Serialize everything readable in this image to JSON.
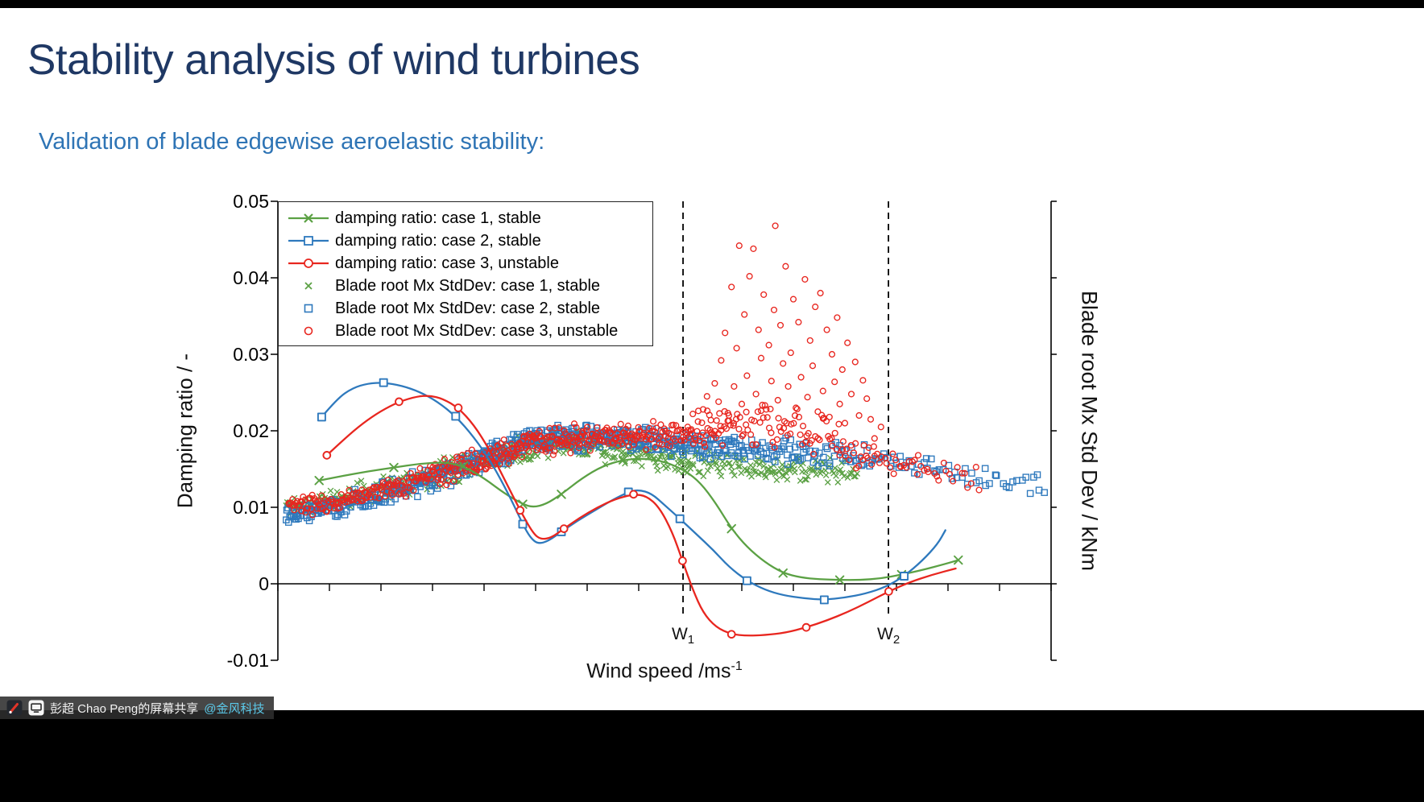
{
  "slide": {
    "title": "Stability analysis of wind turbines",
    "subtitle": "Validation of blade edgewise aeroelastic stability:"
  },
  "colors": {
    "title": "#1F3864",
    "subtitle": "#2E74B5",
    "case1_green": "#5BA144",
    "case2_blue": "#2E79BD",
    "case3_red": "#E8261F",
    "axis": "#000000",
    "share_org_link": "#5BC8E8"
  },
  "share_bar": {
    "presenter": "彭超 Chao Peng的屏幕共享",
    "org": "@金风科技",
    "icons": [
      "pen-icon",
      "screen-share-icon"
    ]
  },
  "chart_data": {
    "type": "line+scatter",
    "title": "",
    "xlabel": {
      "base": "Wind speed /ms",
      "sup": "-1"
    },
    "ylabel_left": "Damping ratio / -",
    "ylabel_right": "Blade root Mx Std Dev / kNm",
    "x_range": [
      0,
      30
    ],
    "x_tick_step": 2,
    "x_tick_labels_shown": false,
    "y_range": [
      -0.01,
      0.05
    ],
    "y_ticks": [
      0.05,
      0.04,
      0.03,
      0.02,
      0.01,
      0,
      -0.01
    ],
    "y_tick_labels": [
      "0.05",
      "0.04",
      "0.03",
      "0.02",
      "0.01",
      "0",
      "-0.01"
    ],
    "grid": false,
    "legend_position": "top-left",
    "vlines": [
      {
        "x": 15.72,
        "label": "W",
        "sub": "1"
      },
      {
        "x": 23.69,
        "label": "W",
        "sub": "2"
      }
    ],
    "legend": [
      {
        "label": "damping ratio: case 1, stable",
        "color": "#5BA144",
        "marker": "x",
        "line": true
      },
      {
        "label": "damping ratio: case 2, stable",
        "color": "#2E79BD",
        "marker": "square",
        "line": true
      },
      {
        "label": "damping ratio: case 3, unstable",
        "color": "#E8261F",
        "marker": "circle",
        "line": true
      },
      {
        "label": "Blade root Mx StdDev: case 1, stable",
        "color": "#5BA144",
        "marker": "x",
        "line": false
      },
      {
        "label": "Blade root Mx StdDev: case 2, stable",
        "color": "#2E79BD",
        "marker": "square",
        "line": false
      },
      {
        "label": "Blade root Mx StdDev: case 3, unstable",
        "color": "#E8261F",
        "marker": "circle",
        "line": false
      }
    ],
    "lines": [
      {
        "name": "damping ratio: case 1, stable",
        "color": "#5BA144",
        "marker": "x",
        "marker_every": 3,
        "points": [
          [
            1.6,
            0.0135
          ],
          [
            2.5,
            0.0141
          ],
          [
            3.5,
            0.0147
          ],
          [
            4.5,
            0.0152
          ],
          [
            5.5,
            0.0157
          ],
          [
            6.5,
            0.0159
          ],
          [
            7.2,
            0.0154
          ],
          [
            8.0,
            0.0138
          ],
          [
            8.8,
            0.0118
          ],
          [
            9.5,
            0.0104
          ],
          [
            9.9,
            0.01
          ],
          [
            10.4,
            0.0104
          ],
          [
            11.0,
            0.0117
          ],
          [
            11.8,
            0.0138
          ],
          [
            12.6,
            0.0154
          ],
          [
            13.4,
            0.0162
          ],
          [
            14.2,
            0.0164
          ],
          [
            15.0,
            0.016
          ],
          [
            15.8,
            0.0148
          ],
          [
            16.4,
            0.0132
          ],
          [
            17.0,
            0.0105
          ],
          [
            17.6,
            0.0072
          ],
          [
            18.2,
            0.0048
          ],
          [
            18.9,
            0.0028
          ],
          [
            19.6,
            0.0014
          ],
          [
            20.3,
            0.0008
          ],
          [
            21.0,
            0.0006
          ],
          [
            21.8,
            0.0005
          ],
          [
            22.6,
            0.0005
          ],
          [
            23.4,
            0.0007
          ],
          [
            24.2,
            0.0012
          ],
          [
            25.0,
            0.0018
          ],
          [
            25.9,
            0.0026
          ],
          [
            26.4,
            0.0031
          ]
        ]
      },
      {
        "name": "damping ratio: case 2, stable",
        "color": "#2E79BD",
        "marker": "square",
        "marker_every": 4,
        "points": [
          [
            1.7,
            0.0218
          ],
          [
            2.3,
            0.0242
          ],
          [
            2.9,
            0.0256
          ],
          [
            3.5,
            0.0262
          ],
          [
            4.1,
            0.0263
          ],
          [
            4.8,
            0.0259
          ],
          [
            5.5,
            0.0251
          ],
          [
            6.2,
            0.0238
          ],
          [
            6.9,
            0.0219
          ],
          [
            7.6,
            0.0192
          ],
          [
            8.3,
            0.0158
          ],
          [
            9.0,
            0.0114
          ],
          [
            9.5,
            0.0078
          ],
          [
            9.8,
            0.006
          ],
          [
            10.1,
            0.0052
          ],
          [
            10.5,
            0.0056
          ],
          [
            11.0,
            0.0068
          ],
          [
            11.6,
            0.0082
          ],
          [
            12.3,
            0.0096
          ],
          [
            13.0,
            0.011
          ],
          [
            13.6,
            0.012
          ],
          [
            14.0,
            0.0123
          ],
          [
            14.5,
            0.0118
          ],
          [
            15.0,
            0.0103
          ],
          [
            15.6,
            0.0085
          ],
          [
            16.2,
            0.0066
          ],
          [
            16.9,
            0.0044
          ],
          [
            17.5,
            0.0022
          ],
          [
            18.2,
            0.0004
          ],
          [
            18.9,
            -0.0008
          ],
          [
            19.6,
            -0.0015
          ],
          [
            20.4,
            -0.0019
          ],
          [
            21.2,
            -0.0021
          ],
          [
            22.0,
            -0.0018
          ],
          [
            22.8,
            -0.0013
          ],
          [
            23.6,
            -0.0004
          ],
          [
            24.3,
            0.001
          ],
          [
            25.0,
            0.003
          ],
          [
            25.6,
            0.0052
          ],
          [
            25.9,
            0.007
          ]
        ]
      },
      {
        "name": "damping ratio: case 3, unstable",
        "color": "#E8261F",
        "marker": "circle",
        "marker_every": 4,
        "points": [
          [
            1.9,
            0.0168
          ],
          [
            2.6,
            0.019
          ],
          [
            3.3,
            0.021
          ],
          [
            4.0,
            0.0226
          ],
          [
            4.7,
            0.0238
          ],
          [
            5.4,
            0.0245
          ],
          [
            5.9,
            0.0246
          ],
          [
            6.4,
            0.0242
          ],
          [
            7.0,
            0.023
          ],
          [
            7.6,
            0.0208
          ],
          [
            8.2,
            0.0176
          ],
          [
            8.8,
            0.0136
          ],
          [
            9.4,
            0.0096
          ],
          [
            9.9,
            0.0066
          ],
          [
            10.2,
            0.0058
          ],
          [
            10.6,
            0.006
          ],
          [
            11.1,
            0.0072
          ],
          [
            11.7,
            0.0086
          ],
          [
            12.4,
            0.01
          ],
          [
            13.1,
            0.0111
          ],
          [
            13.8,
            0.0117
          ],
          [
            14.3,
            0.0115
          ],
          [
            14.8,
            0.01
          ],
          [
            15.3,
            0.0068
          ],
          [
            15.7,
            0.003
          ],
          [
            16.1,
            -0.0008
          ],
          [
            16.5,
            -0.0038
          ],
          [
            17.0,
            -0.0057
          ],
          [
            17.6,
            -0.0066
          ],
          [
            18.2,
            -0.0068
          ],
          [
            18.9,
            -0.0067
          ],
          [
            19.7,
            -0.0064
          ],
          [
            20.5,
            -0.0057
          ],
          [
            21.3,
            -0.0048
          ],
          [
            22.1,
            -0.0037
          ],
          [
            22.9,
            -0.0024
          ],
          [
            23.7,
            -0.001
          ],
          [
            24.5,
            0.0002
          ],
          [
            25.4,
            0.0012
          ],
          [
            26.3,
            0.002
          ]
        ]
      }
    ],
    "scatter": [
      {
        "name": "Blade root Mx StdDev: case 1, stable",
        "color": "#5BA144",
        "marker": "x",
        "seed": 11,
        "bands": [
          [
            0.3,
            2.0,
            42,
            0.01,
            0.0108,
            0.001
          ],
          [
            2.0,
            4.0,
            51,
            0.0108,
            0.0125,
            0.0011
          ],
          [
            4.0,
            6.0,
            54,
            0.0125,
            0.0142,
            0.0012
          ],
          [
            6.0,
            8.0,
            60,
            0.0142,
            0.0163,
            0.0013
          ],
          [
            8.0,
            10.0,
            66,
            0.0163,
            0.018,
            0.0013
          ],
          [
            10.0,
            12.0,
            66,
            0.018,
            0.0183,
            0.0013
          ],
          [
            12.0,
            14.0,
            60,
            0.018,
            0.017,
            0.0013
          ],
          [
            14.0,
            16.0,
            54,
            0.0168,
            0.016,
            0.0013
          ],
          [
            16.0,
            18.5,
            51,
            0.0158,
            0.0152,
            0.0013
          ],
          [
            18.5,
            20.5,
            45,
            0.0152,
            0.0148,
            0.0012
          ],
          [
            20.5,
            22.5,
            39,
            0.015,
            0.0147,
            0.0012
          ]
        ],
        "points": [
          [
            1.7,
            0.0218
          ]
        ]
      },
      {
        "name": "Blade root Mx StdDev: case 2, stable",
        "color": "#2E79BD",
        "marker": "square",
        "seed": 22,
        "bands": [
          [
            0.3,
            2.0,
            45,
            0.0092,
            0.01,
            0.001
          ],
          [
            2.0,
            4.0,
            51,
            0.01,
            0.0116,
            0.0011
          ],
          [
            4.0,
            6.0,
            54,
            0.0116,
            0.0138,
            0.0012
          ],
          [
            6.0,
            8.0,
            60,
            0.0138,
            0.0165,
            0.0013
          ],
          [
            8.0,
            10.0,
            69,
            0.0165,
            0.0188,
            0.0013
          ],
          [
            10.0,
            12.0,
            69,
            0.0188,
            0.0193,
            0.0012
          ],
          [
            12.0,
            14.0,
            63,
            0.0192,
            0.0188,
            0.0012
          ],
          [
            14.0,
            16.0,
            57,
            0.0188,
            0.0182,
            0.0012
          ],
          [
            16.0,
            18.0,
            51,
            0.0182,
            0.0176,
            0.0012
          ],
          [
            18.0,
            20.5,
            45,
            0.0176,
            0.017,
            0.0012
          ],
          [
            20.5,
            23.0,
            36,
            0.017,
            0.0163,
            0.0012
          ],
          [
            23.0,
            25.5,
            24,
            0.0162,
            0.015,
            0.0011
          ],
          [
            25.5,
            28.0,
            18,
            0.0148,
            0.0137,
            0.0011
          ],
          [
            28.0,
            29.8,
            12,
            0.0135,
            0.0128,
            0.001
          ]
        ],
        "points": []
      },
      {
        "name": "Blade root Mx StdDev: case 3, unstable",
        "color": "#E8261F",
        "marker": "circle",
        "seed": 33,
        "bands": [
          [
            0.4,
            2.0,
            39,
            0.01,
            0.0106,
            0.0009
          ],
          [
            2.0,
            4.0,
            48,
            0.0106,
            0.012,
            0.001
          ],
          [
            4.0,
            6.0,
            51,
            0.012,
            0.014,
            0.0011
          ],
          [
            6.0,
            8.0,
            57,
            0.014,
            0.0163,
            0.0012
          ],
          [
            8.0,
            10.0,
            63,
            0.0163,
            0.0185,
            0.0012
          ],
          [
            10.0,
            12.0,
            63,
            0.0185,
            0.0192,
            0.0012
          ],
          [
            12.0,
            14.0,
            57,
            0.019,
            0.0192,
            0.0012
          ],
          [
            14.0,
            15.8,
            45,
            0.0192,
            0.0197,
            0.0013
          ],
          [
            15.8,
            17.5,
            39,
            0.0198,
            0.0206,
            0.0018
          ],
          [
            17.5,
            19.5,
            33,
            0.0206,
            0.021,
            0.0022
          ],
          [
            19.5,
            21.5,
            30,
            0.0205,
            0.0198,
            0.0022
          ],
          [
            21.5,
            23.2,
            24,
            0.0185,
            0.0168,
            0.0018
          ],
          [
            23.2,
            25.2,
            21,
            0.0162,
            0.015,
            0.0012
          ],
          [
            25.2,
            27.3,
            15,
            0.0148,
            0.0138,
            0.0011
          ]
        ],
        "points": [
          [
            15.9,
            0.0205
          ],
          [
            16.1,
            0.0222
          ],
          [
            16.3,
            0.0212
          ],
          [
            16.5,
            0.0228
          ],
          [
            16.65,
            0.0245
          ],
          [
            16.8,
            0.0214
          ],
          [
            16.95,
            0.0262
          ],
          [
            17.1,
            0.0238
          ],
          [
            17.2,
            0.0292
          ],
          [
            17.35,
            0.0328
          ],
          [
            17.5,
            0.022
          ],
          [
            17.6,
            0.0388
          ],
          [
            17.7,
            0.0258
          ],
          [
            17.8,
            0.0308
          ],
          [
            17.9,
            0.0442
          ],
          [
            18.0,
            0.0235
          ],
          [
            18.1,
            0.0352
          ],
          [
            18.2,
            0.0272
          ],
          [
            18.3,
            0.0402
          ],
          [
            18.45,
            0.0438
          ],
          [
            18.55,
            0.0248
          ],
          [
            18.65,
            0.0332
          ],
          [
            18.75,
            0.0295
          ],
          [
            18.85,
            0.0378
          ],
          [
            18.95,
            0.0228
          ],
          [
            19.05,
            0.0312
          ],
          [
            19.15,
            0.0265
          ],
          [
            19.25,
            0.0358
          ],
          [
            19.3,
            0.0468
          ],
          [
            19.4,
            0.024
          ],
          [
            19.5,
            0.0338
          ],
          [
            19.6,
            0.0288
          ],
          [
            19.7,
            0.0415
          ],
          [
            19.8,
            0.0258
          ],
          [
            19.9,
            0.0302
          ],
          [
            20.0,
            0.0372
          ],
          [
            20.1,
            0.023
          ],
          [
            20.2,
            0.0342
          ],
          [
            20.3,
            0.027
          ],
          [
            20.45,
            0.0398
          ],
          [
            20.55,
            0.0244
          ],
          [
            20.65,
            0.0318
          ],
          [
            20.75,
            0.0285
          ],
          [
            20.85,
            0.0362
          ],
          [
            20.95,
            0.0225
          ],
          [
            21.05,
            0.038
          ],
          [
            21.15,
            0.0252
          ],
          [
            21.3,
            0.0332
          ],
          [
            21.4,
            0.0218
          ],
          [
            21.5,
            0.03
          ],
          [
            21.6,
            0.0264
          ],
          [
            21.7,
            0.0348
          ],
          [
            21.8,
            0.0235
          ],
          [
            21.9,
            0.028
          ],
          [
            22.0,
            0.021
          ],
          [
            22.1,
            0.0315
          ],
          [
            22.25,
            0.0248
          ],
          [
            22.4,
            0.029
          ],
          [
            22.55,
            0.022
          ],
          [
            22.7,
            0.0266
          ],
          [
            22.85,
            0.0242
          ],
          [
            23.0,
            0.0215
          ],
          [
            23.15,
            0.019
          ],
          [
            23.4,
            0.0205
          ]
        ]
      }
    ]
  }
}
